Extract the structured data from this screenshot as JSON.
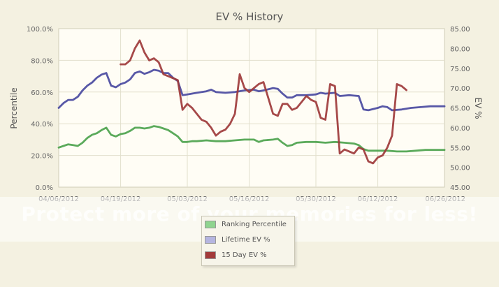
{
  "chart_data": {
    "type": "line",
    "title": "EV % History",
    "ylabel": "Percentile",
    "y2label": "EV %",
    "x_ticks": [
      "04/06/2012",
      "04/19/2012",
      "05/03/2012",
      "05/16/2012",
      "05/30/2012",
      "06/12/2012",
      "06/26/2012"
    ],
    "ylim": [
      0,
      100
    ],
    "y_ticks": [
      "0.0%",
      "20.0%",
      "40.0%",
      "60.0%",
      "80.0%",
      "100.0%"
    ],
    "y2lim": [
      45,
      85
    ],
    "y2_ticks": [
      "45.00",
      "50.00",
      "55.00",
      "60.00",
      "65.00",
      "70.00",
      "75.00",
      "80.00",
      "85.00"
    ],
    "grid": true,
    "legend_position": "bottom",
    "series": [
      {
        "name": "Ranking Percentile",
        "axis": "left",
        "color": "#4da34d",
        "swatch": "#8fd48f",
        "points": [
          [
            "04/06/2012",
            25.0
          ],
          [
            "04/07/2012",
            26.0
          ],
          [
            "04/08/2012",
            27.0
          ],
          [
            "04/09/2012",
            26.5
          ],
          [
            "04/10/2012",
            26.0
          ],
          [
            "04/11/2012",
            28.0
          ],
          [
            "04/12/2012",
            31.0
          ],
          [
            "04/13/2012",
            33.0
          ],
          [
            "04/14/2012",
            34.0
          ],
          [
            "04/15/2012",
            36.0
          ],
          [
            "04/16/2012",
            37.5
          ],
          [
            "04/17/2012",
            33.0
          ],
          [
            "04/18/2012",
            32.0
          ],
          [
            "04/19/2012",
            33.5
          ],
          [
            "04/20/2012",
            34.0
          ],
          [
            "04/21/2012",
            35.5
          ],
          [
            "04/22/2012",
            37.5
          ],
          [
            "04/23/2012",
            37.5
          ],
          [
            "04/24/2012",
            37.0
          ],
          [
            "04/25/2012",
            37.5
          ],
          [
            "04/26/2012",
            38.5
          ],
          [
            "04/27/2012",
            38.0
          ],
          [
            "04/28/2012",
            37.0
          ],
          [
            "04/29/2012",
            36.0
          ],
          [
            "04/30/2012",
            34.0
          ],
          [
            "05/01/2012",
            32.0
          ],
          [
            "05/02/2012",
            28.5
          ],
          [
            "05/03/2012",
            28.5
          ],
          [
            "05/04/2012",
            29.0
          ],
          [
            "05/05/2012",
            29.0
          ],
          [
            "05/07/2012",
            29.5
          ],
          [
            "05/09/2012",
            29.0
          ],
          [
            "05/11/2012",
            29.0
          ],
          [
            "05/13/2012",
            29.5
          ],
          [
            "05/15/2012",
            30.0
          ],
          [
            "05/17/2012",
            30.0
          ],
          [
            "05/18/2012",
            28.5
          ],
          [
            "05/19/2012",
            29.5
          ],
          [
            "05/21/2012",
            30.0
          ],
          [
            "05/22/2012",
            30.5
          ],
          [
            "05/23/2012",
            28.0
          ],
          [
            "05/24/2012",
            26.0
          ],
          [
            "05/25/2012",
            26.5
          ],
          [
            "05/26/2012",
            28.0
          ],
          [
            "05/28/2012",
            28.5
          ],
          [
            "05/30/2012",
            28.5
          ],
          [
            "06/01/2012",
            28.0
          ],
          [
            "06/03/2012",
            28.5
          ],
          [
            "06/05/2012",
            28.0
          ],
          [
            "06/07/2012",
            27.5
          ],
          [
            "06/08/2012",
            26.5
          ],
          [
            "06/09/2012",
            24.0
          ],
          [
            "06/10/2012",
            23.0
          ],
          [
            "06/12/2012",
            23.0
          ],
          [
            "06/14/2012",
            23.0
          ],
          [
            "06/16/2012",
            22.5
          ],
          [
            "06/18/2012",
            22.5
          ],
          [
            "06/20/2012",
            23.0
          ],
          [
            "06/22/2012",
            23.5
          ],
          [
            "06/24/2012",
            23.5
          ],
          [
            "06/26/2012",
            23.5
          ]
        ]
      },
      {
        "name": "Lifetime EV %",
        "axis": "left",
        "color": "#4a4aa0",
        "swatch": "#b5b5e0",
        "points": [
          [
            "04/06/2012",
            50.0
          ],
          [
            "04/07/2012",
            53.0
          ],
          [
            "04/08/2012",
            55.0
          ],
          [
            "04/09/2012",
            55.0
          ],
          [
            "04/10/2012",
            57.0
          ],
          [
            "04/11/2012",
            61.0
          ],
          [
            "04/12/2012",
            64.0
          ],
          [
            "04/13/2012",
            66.0
          ],
          [
            "04/14/2012",
            69.0
          ],
          [
            "04/15/2012",
            71.0
          ],
          [
            "04/16/2012",
            72.0
          ],
          [
            "04/17/2012",
            64.0
          ],
          [
            "04/18/2012",
            63.0
          ],
          [
            "04/19/2012",
            65.0
          ],
          [
            "04/20/2012",
            66.0
          ],
          [
            "04/21/2012",
            68.0
          ],
          [
            "04/22/2012",
            72.0
          ],
          [
            "04/23/2012",
            73.0
          ],
          [
            "04/24/2012",
            71.5
          ],
          [
            "04/25/2012",
            72.5
          ],
          [
            "04/26/2012",
            74.0
          ],
          [
            "04/27/2012",
            73.5
          ],
          [
            "04/28/2012",
            72.0
          ],
          [
            "04/29/2012",
            72.0
          ],
          [
            "04/30/2012",
            69.0
          ],
          [
            "05/01/2012",
            67.0
          ],
          [
            "05/02/2012",
            58.0
          ],
          [
            "05/03/2012",
            58.5
          ],
          [
            "05/05/2012",
            59.5
          ],
          [
            "05/07/2012",
            60.5
          ],
          [
            "05/08/2012",
            61.5
          ],
          [
            "05/09/2012",
            60.0
          ],
          [
            "05/11/2012",
            59.5
          ],
          [
            "05/13/2012",
            60.0
          ],
          [
            "05/15/2012",
            61.0
          ],
          [
            "05/17/2012",
            61.5
          ],
          [
            "05/18/2012",
            60.5
          ],
          [
            "05/19/2012",
            61.0
          ],
          [
            "05/21/2012",
            62.5
          ],
          [
            "05/22/2012",
            62.0
          ],
          [
            "05/23/2012",
            59.0
          ],
          [
            "05/24/2012",
            56.5
          ],
          [
            "05/25/2012",
            56.5
          ],
          [
            "05/26/2012",
            58.0
          ],
          [
            "05/28/2012",
            58.0
          ],
          [
            "05/30/2012",
            58.5
          ],
          [
            "05/31/2012",
            59.5
          ],
          [
            "06/01/2012",
            59.0
          ],
          [
            "06/03/2012",
            59.5
          ],
          [
            "06/04/2012",
            57.5
          ],
          [
            "06/06/2012",
            58.0
          ],
          [
            "06/08/2012",
            57.5
          ],
          [
            "06/09/2012",
            49.0
          ],
          [
            "06/10/2012",
            48.5
          ],
          [
            "06/12/2012",
            50.0
          ],
          [
            "06/13/2012",
            51.0
          ],
          [
            "06/14/2012",
            50.5
          ],
          [
            "06/15/2012",
            48.5
          ],
          [
            "06/17/2012",
            49.0
          ],
          [
            "06/19/2012",
            50.0
          ],
          [
            "06/21/2012",
            50.5
          ],
          [
            "06/23/2012",
            51.0
          ],
          [
            "06/26/2012",
            51.0
          ]
        ]
      },
      {
        "name": "15 Day EV %",
        "axis": "right",
        "color": "#9e3a3a",
        "swatch": "#a33a3a",
        "points": [
          [
            "04/19/2012",
            76.0
          ],
          [
            "04/20/2012",
            76.0
          ],
          [
            "04/21/2012",
            77.0
          ],
          [
            "04/22/2012",
            80.0
          ],
          [
            "04/23/2012",
            82.0
          ],
          [
            "04/24/2012",
            79.0
          ],
          [
            "04/25/2012",
            77.0
          ],
          [
            "04/26/2012",
            77.5
          ],
          [
            "04/27/2012",
            76.5
          ],
          [
            "04/28/2012",
            73.5
          ],
          [
            "04/29/2012",
            73.0
          ],
          [
            "04/30/2012",
            72.5
          ],
          [
            "05/01/2012",
            72.0
          ],
          [
            "05/02/2012",
            64.5
          ],
          [
            "05/03/2012",
            66.0
          ],
          [
            "05/04/2012",
            65.0
          ],
          [
            "05/05/2012",
            63.5
          ],
          [
            "05/06/2012",
            62.0
          ],
          [
            "05/07/2012",
            61.5
          ],
          [
            "05/08/2012",
            60.0
          ],
          [
            "05/09/2012",
            58.0
          ],
          [
            "05/10/2012",
            59.0
          ],
          [
            "05/11/2012",
            59.5
          ],
          [
            "05/12/2012",
            61.0
          ],
          [
            "05/13/2012",
            63.5
          ],
          [
            "05/14/2012",
            73.5
          ],
          [
            "05/15/2012",
            70.0
          ],
          [
            "05/16/2012",
            69.0
          ],
          [
            "05/17/2012",
            70.0
          ],
          [
            "05/18/2012",
            71.0
          ],
          [
            "05/19/2012",
            71.5
          ],
          [
            "05/20/2012",
            67.5
          ],
          [
            "05/21/2012",
            63.5
          ],
          [
            "05/22/2012",
            63.0
          ],
          [
            "05/23/2012",
            66.0
          ],
          [
            "05/24/2012",
            66.0
          ],
          [
            "05/25/2012",
            64.5
          ],
          [
            "05/26/2012",
            65.0
          ],
          [
            "05/27/2012",
            66.5
          ],
          [
            "05/28/2012",
            68.0
          ],
          [
            "05/29/2012",
            67.0
          ],
          [
            "05/30/2012",
            66.5
          ],
          [
            "05/31/2012",
            62.5
          ],
          [
            "06/01/2012",
            62.0
          ],
          [
            "06/02/2012",
            71.0
          ],
          [
            "06/03/2012",
            70.5
          ],
          [
            "06/04/2012",
            53.5
          ],
          [
            "06/05/2012",
            54.5
          ],
          [
            "06/06/2012",
            54.0
          ],
          [
            "06/07/2012",
            53.5
          ],
          [
            "06/08/2012",
            55.0
          ],
          [
            "06/09/2012",
            54.5
          ],
          [
            "06/10/2012",
            51.5
          ],
          [
            "06/11/2012",
            51.0
          ],
          [
            "06/12/2012",
            52.5
          ],
          [
            "06/13/2012",
            53.0
          ],
          [
            "06/14/2012",
            55.0
          ],
          [
            "06/15/2012",
            58.0
          ],
          [
            "06/16/2012",
            71.0
          ],
          [
            "06/17/2012",
            70.5
          ],
          [
            "06/18/2012",
            69.5
          ]
        ]
      }
    ]
  },
  "watermark": "Protect more of your memories for less!"
}
